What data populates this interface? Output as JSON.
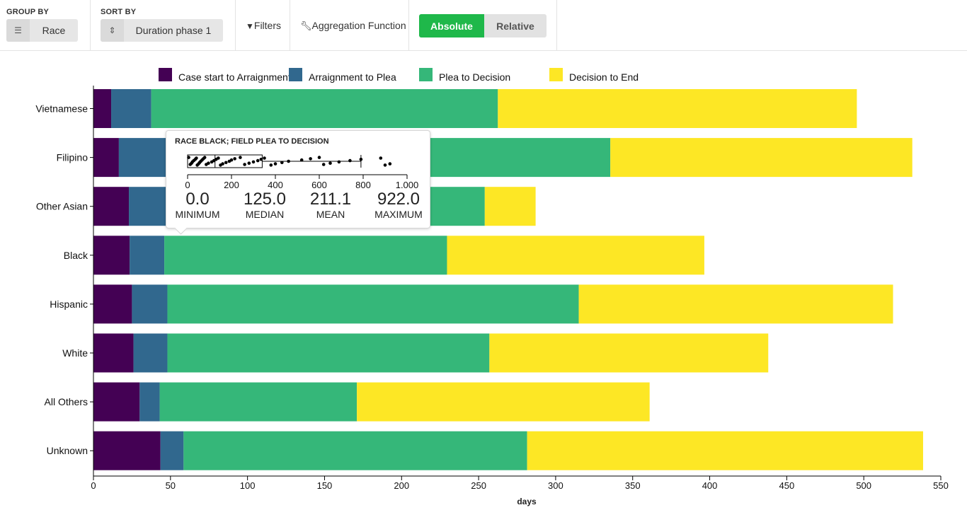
{
  "toolbar": {
    "group_by_label": "GROUP BY",
    "group_by_value": "Race",
    "group_by_icon": "list-icon",
    "sort_by_label": "SORT BY",
    "sort_by_value": "Duration phase 1",
    "sort_by_icon": "sort-icon",
    "filters_label": "Filters",
    "filters_icon": "filter-icon",
    "aggregation_label": "Aggregation Function",
    "aggregation_icon": "wrench-icon",
    "absolute_label": "Absolute",
    "relative_label": "Relative",
    "active_toggle": "absolute",
    "active_color": "#1fb84a"
  },
  "chart_data": {
    "type": "bar",
    "orientation": "horizontal",
    "stacked": true,
    "categories": [
      "Vietnamese",
      "Filipino",
      "Other Asian",
      "Black",
      "Hispanic",
      "White",
      "All Others",
      "Unknown"
    ],
    "series": [
      {
        "name": "Case start to Arraignment",
        "color": "#440154",
        "values": [
          11.5,
          16.5,
          23,
          23.5,
          25,
          26,
          30,
          43.5
        ]
      },
      {
        "name": "Arraignment to Plea",
        "color": "#31688e",
        "values": [
          26,
          40,
          26,
          22.5,
          23,
          22,
          13,
          15
        ]
      },
      {
        "name": "Plea to Decision",
        "color": "#35b779",
        "values": [
          225,
          279,
          205,
          183.5,
          267,
          209,
          128,
          223
        ]
      },
      {
        "name": "Decision to End",
        "color": "#fde725",
        "values": [
          233,
          196,
          33,
          167,
          204,
          181,
          190,
          257
        ]
      }
    ],
    "xlabel": "days",
    "ylabel": "",
    "xlim": [
      0,
      550
    ],
    "xticks": [
      0,
      50,
      100,
      150,
      200,
      250,
      300,
      350,
      400,
      450,
      500,
      550
    ],
    "legend": "top"
  },
  "tooltip": {
    "title": "RACE BLACK; FIELD PLEA TO DECISION",
    "axis_ticks": [
      "0",
      "200",
      "400",
      "600",
      "800",
      "1.000"
    ],
    "axis_max": 1000,
    "box": {
      "q1": 0,
      "median": 125,
      "q3": 340,
      "whisker_high": 790
    },
    "points": [
      5,
      12,
      18,
      22,
      28,
      35,
      40,
      44,
      50,
      55,
      60,
      66,
      72,
      78,
      85,
      95,
      110,
      120,
      130,
      140,
      150,
      160,
      175,
      190,
      200,
      215,
      240,
      260,
      280,
      300,
      320,
      335,
      350,
      380,
      400,
      430,
      460,
      520,
      560,
      600,
      620,
      650,
      690,
      740,
      790,
      880,
      900,
      922
    ],
    "stats": [
      {
        "value": "0.0",
        "label": "MINIMUM"
      },
      {
        "value": "125.0",
        "label": "MEDIAN"
      },
      {
        "value": "211.1",
        "label": "MEAN"
      },
      {
        "value": "922.0",
        "label": "MAXIMUM"
      }
    ]
  }
}
